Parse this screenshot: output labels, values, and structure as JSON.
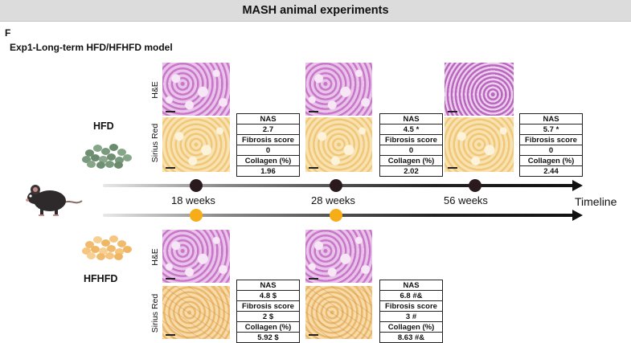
{
  "header": {
    "title": "MASH animal experiments"
  },
  "panel": {
    "letter": "F",
    "subtitle": "Exp1-Long-term HFD/HFHFD model"
  },
  "timeline": {
    "label": "Timeline",
    "weeks": [
      "18 weeks",
      "28 weeks",
      "56 weeks"
    ]
  },
  "groups": {
    "hfd": {
      "label": "HFD",
      "pellet_color": "#7b9b7e",
      "dot_color": "#2a1a1e"
    },
    "hfhfd": {
      "label": "HFHFD",
      "pellet_color": "#f3c27b",
      "dot_color": "#f6ad17"
    }
  },
  "stains": {
    "he": "H&E",
    "sirius": "Sirius Red"
  },
  "stat_labels": {
    "nas": "NAS",
    "fibrosis": "Fibrosis score",
    "collagen": "Collagen (%)"
  },
  "hfd_stats": [
    {
      "nas": "2.7",
      "fibrosis": "0",
      "collagen": "1.96"
    },
    {
      "nas": "4.5 *",
      "fibrosis": "0",
      "collagen": "2.02"
    },
    {
      "nas": "5.7 *",
      "fibrosis": "0",
      "collagen": "2.44"
    }
  ],
  "hfhfd_stats": [
    {
      "nas": "4.8 $",
      "fibrosis": "2 $",
      "collagen": "5.92 $"
    },
    {
      "nas": "6.8 #&",
      "fibrosis": "3 #",
      "collagen": "8.63 #&"
    }
  ]
}
